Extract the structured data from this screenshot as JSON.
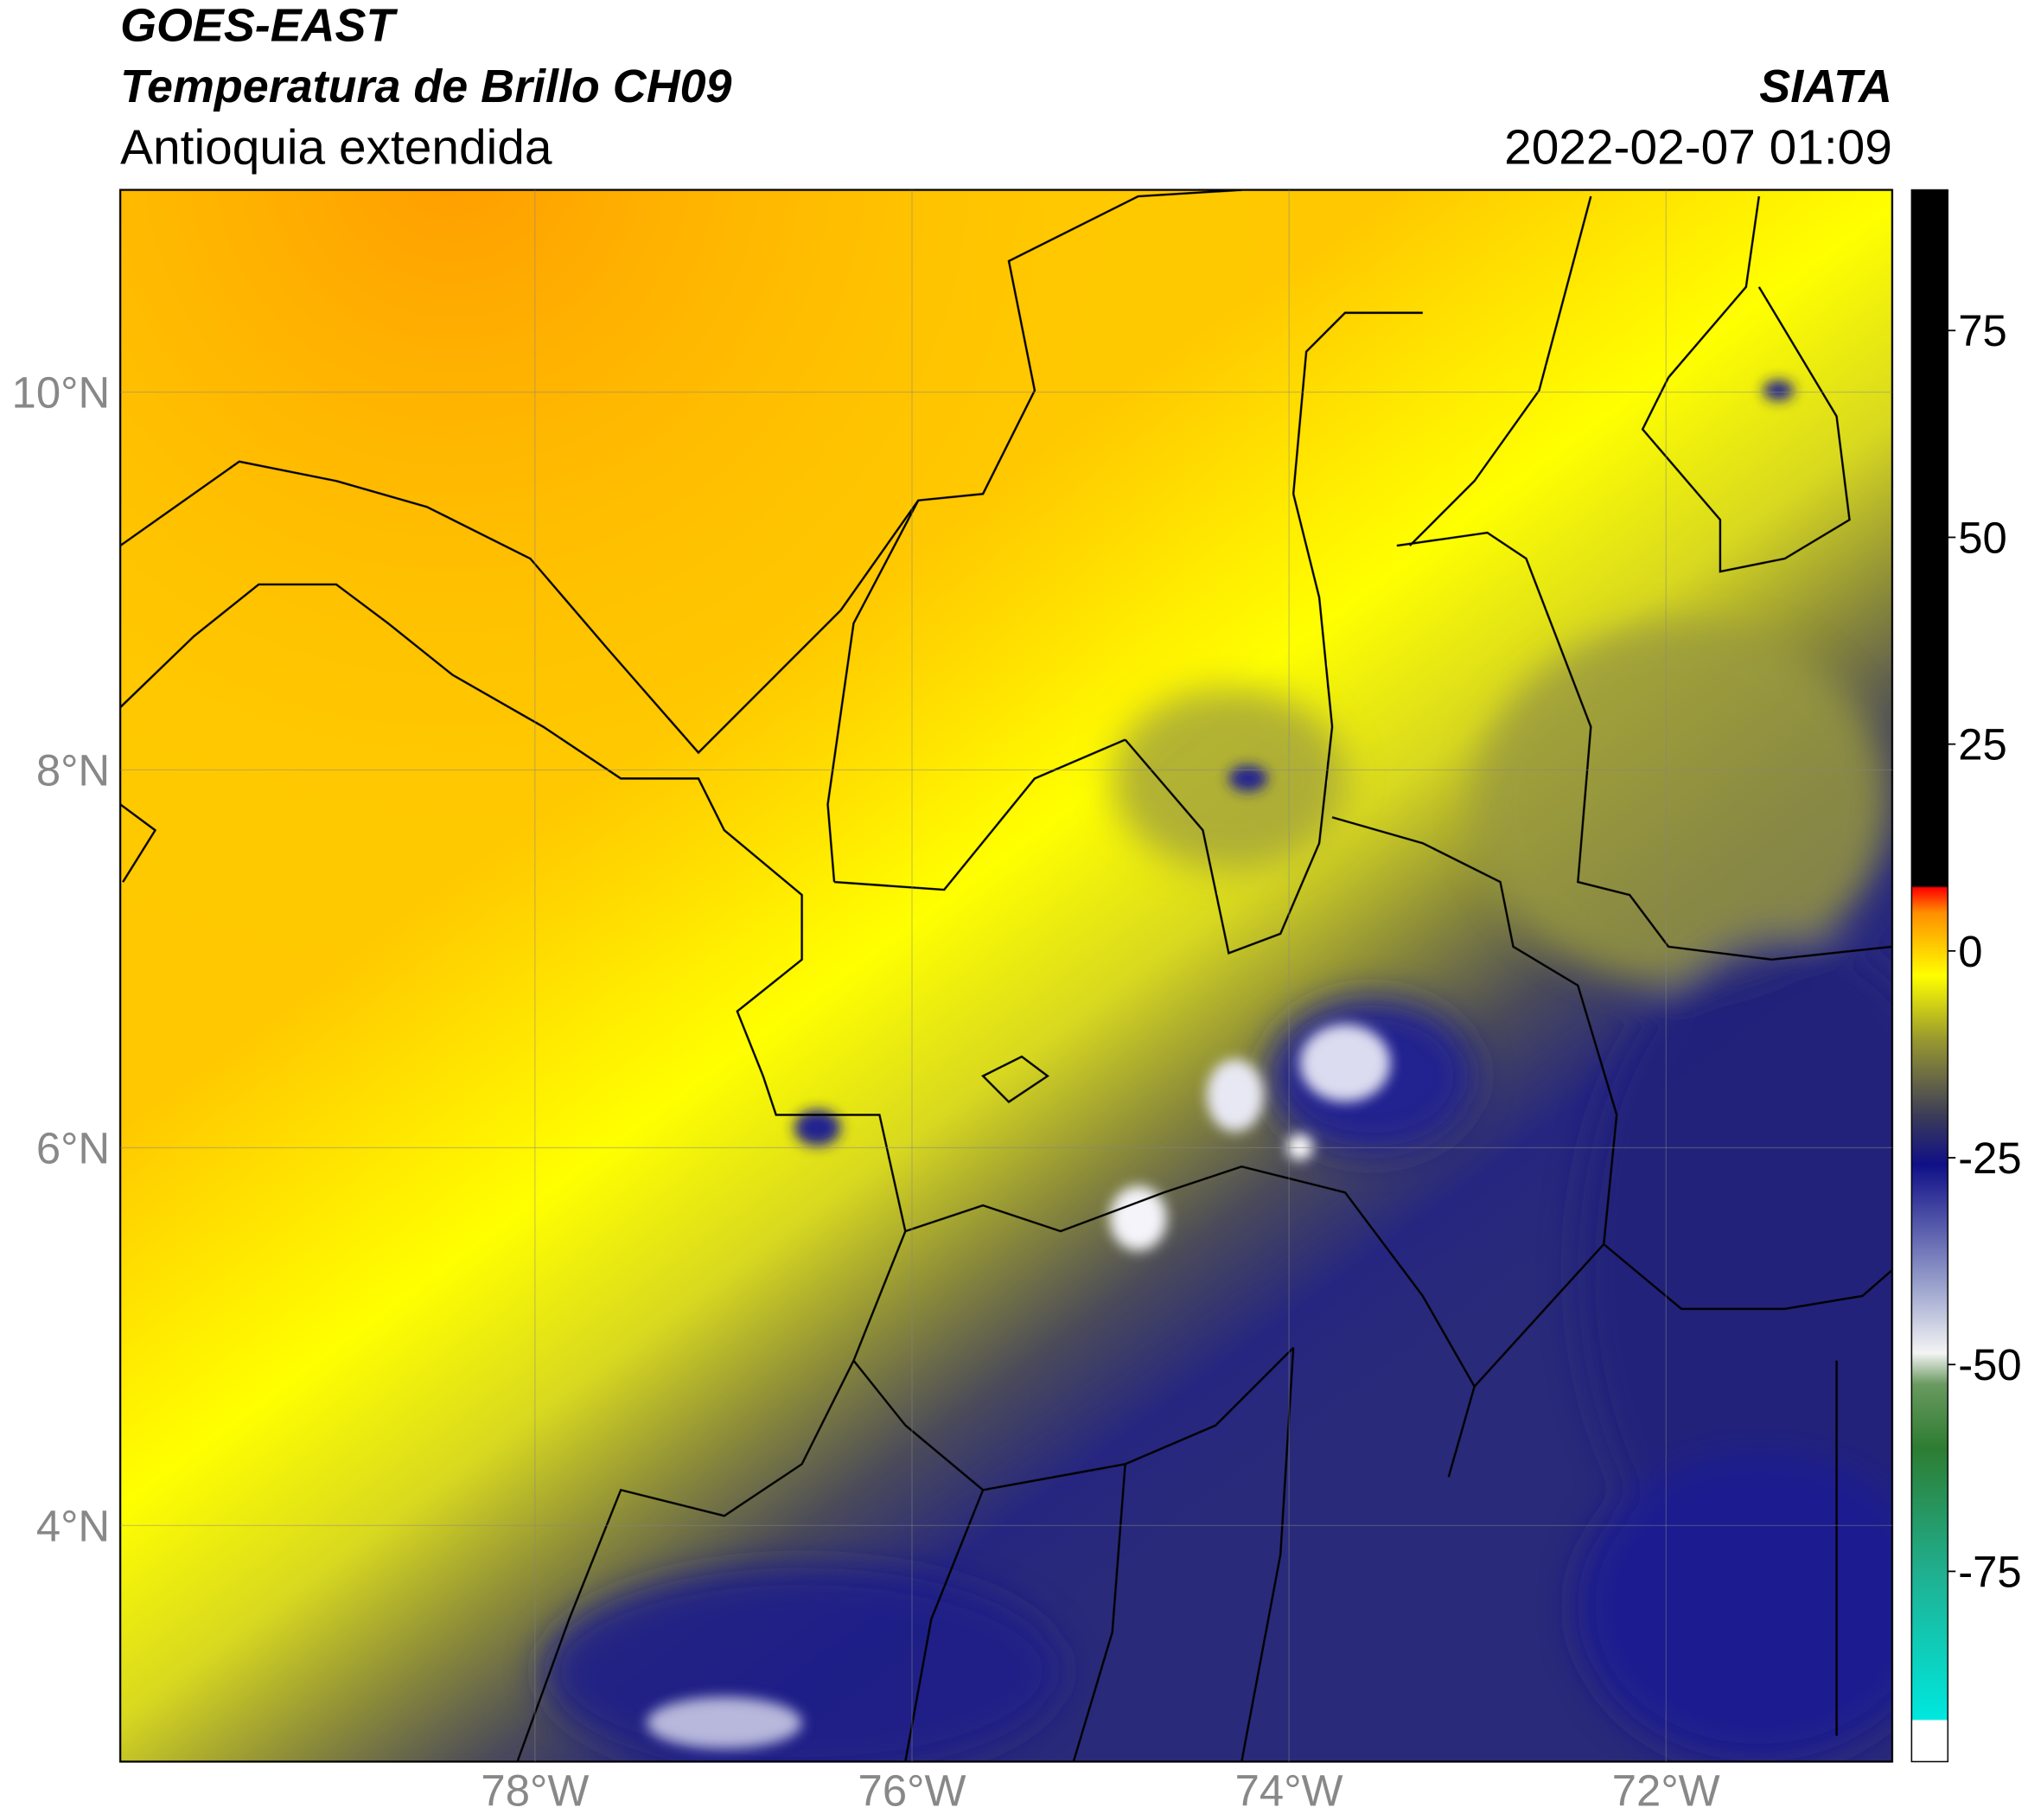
{
  "header": {
    "title": "GOES-EAST",
    "subtitle": "Temperatura de Brillo CH09",
    "region": "Antioquia extendida",
    "source": "SIATA",
    "datetime": "2022-02-07 01:09"
  },
  "map": {
    "xlim": [
      -80.2,
      -70.8
    ],
    "ylim": [
      2.75,
      11.07
    ],
    "xticks": [
      {
        "value": -78,
        "label": "78°W"
      },
      {
        "value": -76,
        "label": "76°W"
      },
      {
        "value": -74,
        "label": "74°W"
      },
      {
        "value": -72,
        "label": "72°W"
      }
    ],
    "yticks": [
      {
        "value": 4,
        "label": "4°N"
      },
      {
        "value": 6,
        "label": "6°N"
      },
      {
        "value": 8,
        "label": "8°N"
      },
      {
        "value": 10,
        "label": "10°N"
      }
    ],
    "grid": true
  },
  "colorbar": {
    "clim": [
      -98,
      92
    ],
    "ticks": [
      75,
      50,
      25,
      0,
      -25,
      -50,
      -75
    ]
  }
}
